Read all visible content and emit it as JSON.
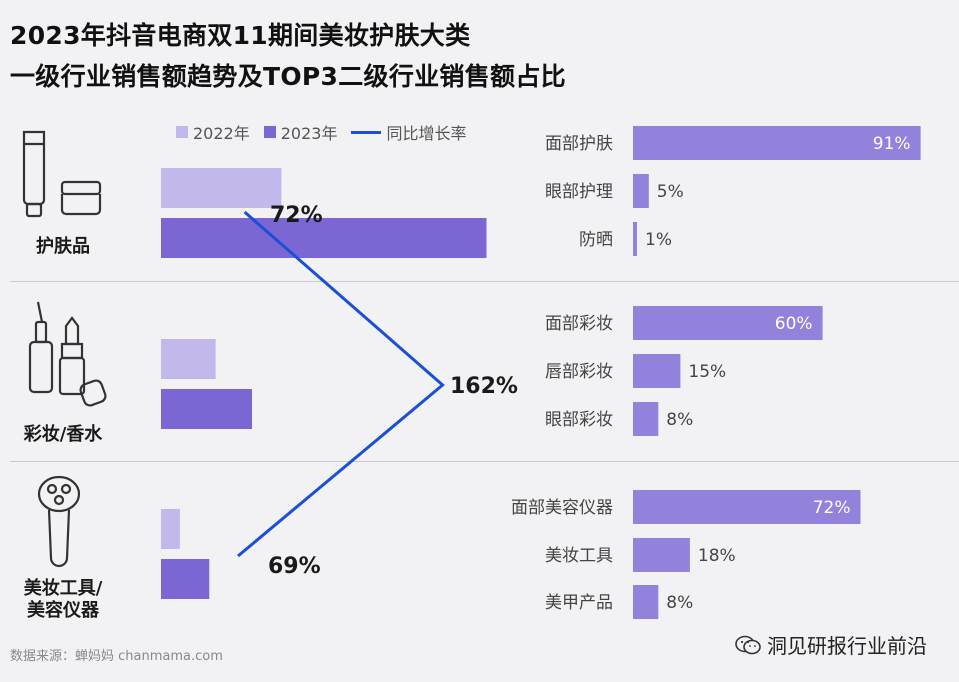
{
  "header": {
    "title_line1": "2023年抖音电商双11期间美妆护肤大类",
    "title_line2": "一级行业销售额趋势及TOP3二级行业销售额占比"
  },
  "legend": {
    "items": [
      "2022年",
      "2023年",
      "同比增长率"
    ]
  },
  "colors": {
    "bar_2022": "#c2b8ec",
    "bar_2023": "#7c66d4",
    "sub_bar": "#8b78d8",
    "growth_line": "#1a4fd6"
  },
  "categories": [
    {
      "label": "护肤品",
      "icon": "skincare-cream-icon"
    },
    {
      "label": "彩妆/香水",
      "icon": "lipstick-perfume-icon"
    },
    {
      "label": "美妆工具/\n美容仪器",
      "icon": "beauty-device-icon"
    }
  ],
  "footer": {
    "source": "数据来源：蝉妈妈 chanmama.com",
    "watermark": "洞见研报行业前沿"
  },
  "chart_data": [
    {
      "type": "bar",
      "orientation": "horizontal",
      "categories": [
        "护肤品",
        "彩妆/香水",
        "美妆工具/美容仪器"
      ],
      "series": [
        {
          "name": "2022年",
          "values": [
            1.72,
            0.78,
            0.27
          ]
        },
        {
          "name": "2023年",
          "values": [
            4.65,
            1.3,
            0.69
          ]
        }
      ],
      "units": "relative (no axis shown)"
    },
    {
      "type": "line",
      "categories": [
        "护肤品",
        "彩妆/香水",
        "美妆工具/美容仪器"
      ],
      "series": [
        {
          "name": "同比增长率",
          "values": [
            72,
            162,
            69
          ],
          "labels": [
            "72%",
            "162%",
            "69%"
          ]
        }
      ]
    },
    {
      "type": "bar",
      "orientation": "horizontal",
      "groups": [
        {
          "parent": "护肤品",
          "categories": [
            "面部护肤",
            "眼部护理",
            "防晒"
          ],
          "values": [
            91,
            5,
            1
          ],
          "labels": [
            "91%",
            "5%",
            "1%"
          ]
        },
        {
          "parent": "彩妆/香水",
          "categories": [
            "面部彩妆",
            "唇部彩妆",
            "眼部彩妆"
          ],
          "values": [
            60,
            15,
            8
          ],
          "labels": [
            "60%",
            "15%",
            "8%"
          ]
        },
        {
          "parent": "美妆工具/美容仪器",
          "categories": [
            "面部美容仪器",
            "美妆工具",
            "美甲产品"
          ],
          "values": [
            72,
            18,
            8
          ],
          "labels": [
            "72%",
            "18%",
            "8%"
          ]
        }
      ]
    }
  ]
}
